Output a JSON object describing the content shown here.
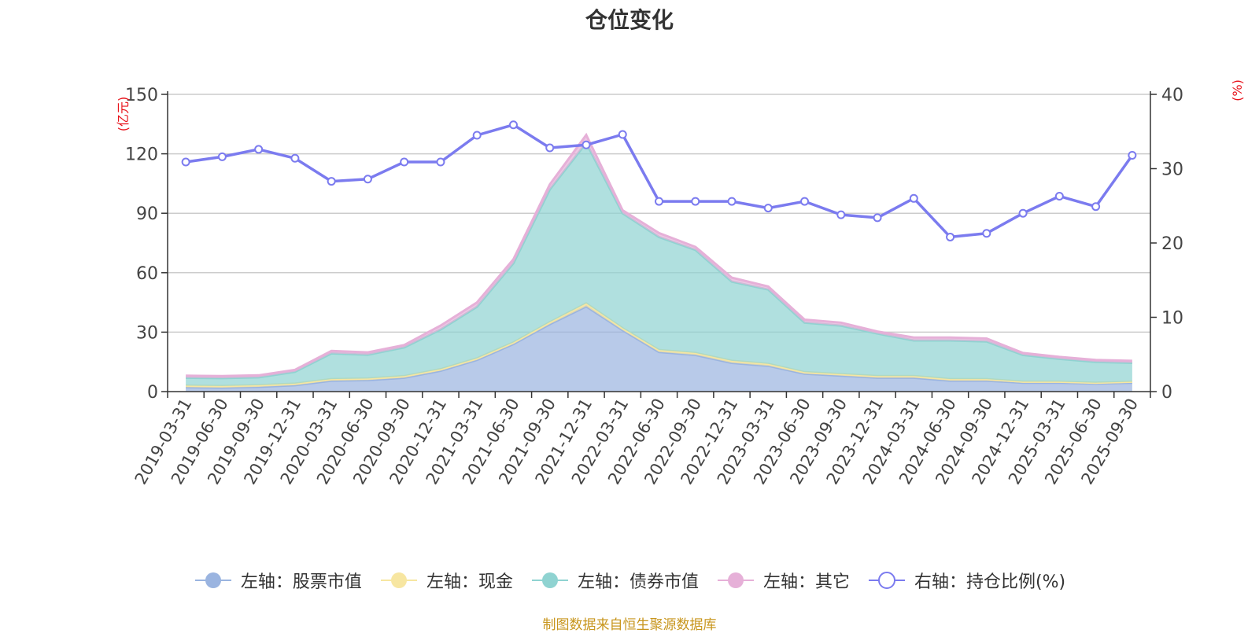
{
  "chart_data": {
    "type": "area",
    "title": "仓位变化",
    "left_axis": {
      "unit": "(亿元)",
      "ylim": [
        0,
        150
      ],
      "ticks": [
        "0",
        "30",
        "60",
        "90",
        "120",
        "150"
      ]
    },
    "right_axis": {
      "unit": "(%)",
      "ylim": [
        0,
        40
      ],
      "ticks": [
        "0",
        "10",
        "20",
        "30",
        "40"
      ]
    },
    "categories": [
      "2019-03-31",
      "2019-06-30",
      "2019-09-30",
      "2019-12-31",
      "2020-03-31",
      "2020-06-30",
      "2020-09-30",
      "2020-12-31",
      "2021-03-31",
      "2021-06-30",
      "2021-09-30",
      "2021-12-31",
      "2022-03-31",
      "2022-06-30",
      "2022-09-30",
      "2022-12-31",
      "2023-03-31",
      "2023-06-30",
      "2023-09-30",
      "2023-12-31",
      "2024-03-31",
      "2024-06-30",
      "2024-09-30",
      "2024-12-31",
      "2025-03-31",
      "2025-06-30",
      "2025-09-30"
    ],
    "series": [
      {
        "name": "左轴：股票市值",
        "axis": "left",
        "kind": "stack",
        "color": "#9ab4e0",
        "values": [
          2.2,
          2,
          2.4,
          3.2,
          5.5,
          5.8,
          7,
          10.5,
          16,
          24,
          34,
          43,
          31,
          20,
          18.5,
          14.5,
          13,
          9,
          8,
          7,
          7,
          5.5,
          5.5,
          4.5,
          4.5,
          4,
          4.5
        ]
      },
      {
        "name": "左轴：现金",
        "axis": "left",
        "kind": "stack",
        "color": "#f7e6a1",
        "values": [
          0.8,
          0.8,
          0.8,
          0.8,
          0.8,
          0.8,
          0.8,
          0.8,
          0.8,
          0.8,
          1,
          1.5,
          1,
          1,
          1,
          1,
          1,
          0.8,
          0.8,
          0.8,
          0.8,
          0.8,
          0.8,
          0.5,
          0.5,
          0.5,
          0.5
        ]
      },
      {
        "name": "左轴：债券市值",
        "axis": "left",
        "kind": "stack",
        "color": "#8fd3d1",
        "values": [
          4,
          4,
          4,
          6,
          13,
          12,
          14.5,
          20,
          26,
          40,
          67,
          81,
          58,
          57,
          52,
          40,
          37.5,
          25,
          24.5,
          21.5,
          18,
          19.5,
          19,
          13.5,
          11.5,
          10.5,
          9.5
        ]
      },
      {
        "name": "左轴：其它",
        "axis": "left",
        "kind": "stack",
        "color": "#e6b0d8",
        "values": [
          1,
          1,
          1,
          1,
          1.2,
          1.2,
          1.2,
          2,
          2.2,
          2,
          2.5,
          4,
          1.5,
          2,
          1.5,
          2,
          1.5,
          1.5,
          1.5,
          1,
          1.5,
          1.5,
          1.5,
          1,
          1,
          1,
          1
        ]
      },
      {
        "name": "右轴：持仓比例(%)",
        "axis": "right",
        "kind": "line",
        "color": "#7b7bef",
        "values": [
          30.9,
          31.6,
          32.6,
          31.4,
          28.3,
          28.6,
          30.9,
          30.9,
          34.5,
          35.9,
          32.8,
          33.2,
          34.6,
          25.6,
          25.6,
          25.6,
          24.7,
          25.6,
          23.8,
          23.4,
          26,
          20.8,
          21.3,
          24,
          26.3,
          24.9,
          31.8
        ]
      }
    ]
  },
  "source_note": "制图数据来自恒生聚源数据库"
}
